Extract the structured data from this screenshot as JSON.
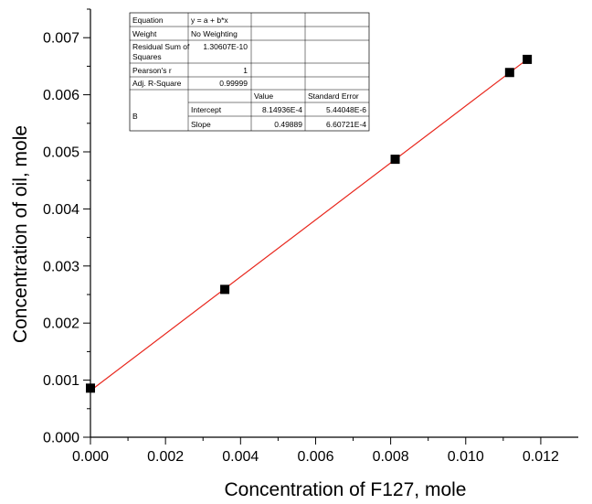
{
  "chart_data": {
    "type": "scatter",
    "xlabel": "Concentration of F127, mole",
    "ylabel": "Concentration of oil, mole",
    "xlim": [
      0.0,
      0.013
    ],
    "ylim": [
      0.0,
      0.0075
    ],
    "x_ticks": [
      "0.000",
      "0.002",
      "0.004",
      "0.006",
      "0.008",
      "0.010",
      "0.012"
    ],
    "y_ticks": [
      "0.000",
      "0.001",
      "0.002",
      "0.003",
      "0.004",
      "0.005",
      "0.006",
      "0.007"
    ],
    "grid": false,
    "marker": "square",
    "marker_color": "#000000",
    "fit_line_color": "#e8261c",
    "points": [
      {
        "x": 0.0,
        "y": 0.00086
      },
      {
        "x": 0.00358,
        "y": 0.00259
      },
      {
        "x": 0.00812,
        "y": 0.00487
      },
      {
        "x": 0.01117,
        "y": 0.00639
      },
      {
        "x": 0.01164,
        "y": 0.00662
      }
    ],
    "fit": {
      "intercept": 0.000814936,
      "slope": 0.49889,
      "x_range": [
        0.0,
        0.0117
      ]
    },
    "fit_table": {
      "equation_label": "Equation",
      "equation_value": "y = a + b*x",
      "weight_label": "Weight",
      "weight_value": "No Weighting",
      "rss_label_1": "Residual Sum of",
      "rss_label_2": "Squares",
      "rss_value": "1.30607E-10",
      "pearson_label": "Pearson's r",
      "pearson_value": "1",
      "adjr2_label": "Adj. R-Square",
      "adjr2_value": "0.99999",
      "value_header": "Value",
      "se_header": "Standard Error",
      "param_label": "B",
      "intercept_label": "Intercept",
      "intercept_value": "8.14936E-4",
      "intercept_se": "5.44048E-6",
      "slope_label": "Slope",
      "slope_value": "0.49889",
      "slope_se": "6.60721E-4"
    }
  }
}
